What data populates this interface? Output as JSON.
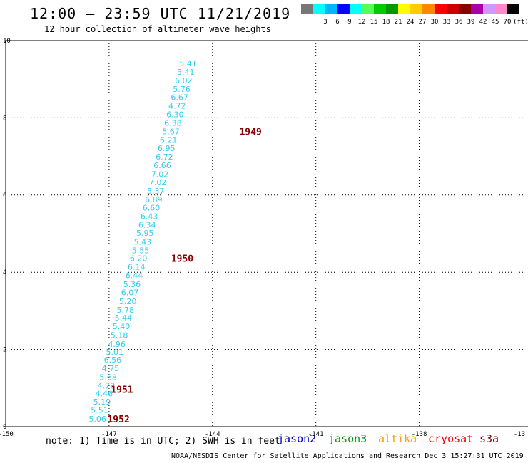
{
  "header": {
    "title": "12:00 — 23:59 UTC 11/21/2019",
    "subtitle": "12 hour collection of altimeter wave heights"
  },
  "color_scale": {
    "unit": "(ft)",
    "bins": [
      {
        "label": "",
        "color": "#777777"
      },
      {
        "label": "3",
        "color": "#00ffff"
      },
      {
        "label": "6",
        "color": "#00b4ff"
      },
      {
        "label": "9",
        "color": "#0000ff"
      },
      {
        "label": "12",
        "color": "#00ffff"
      },
      {
        "label": "15",
        "color": "#55ff55"
      },
      {
        "label": "18",
        "color": "#00cc00"
      },
      {
        "label": "21",
        "color": "#009900"
      },
      {
        "label": "24",
        "color": "#ffff00"
      },
      {
        "label": "27",
        "color": "#ffcc00"
      },
      {
        "label": "30",
        "color": "#ff8800"
      },
      {
        "label": "33",
        "color": "#ff0000"
      },
      {
        "label": "36",
        "color": "#cc0000"
      },
      {
        "label": "39",
        "color": "#880000"
      },
      {
        "label": "42",
        "color": "#aa00aa"
      },
      {
        "label": "45",
        "color": "#cc99ff"
      },
      {
        "label": "70",
        "color": "#ff88cc"
      },
      {
        "label": "",
        "color": "#000000"
      }
    ]
  },
  "axes": {
    "x_ticks": [
      "-150",
      "-147",
      "-144",
      "-141",
      "-138",
      "-13"
    ],
    "y_ticks": [
      "0",
      "2",
      "4",
      "6",
      "8",
      "10"
    ]
  },
  "observations": {
    "color": "#33ccee",
    "time_label_color": "#880000",
    "points": [
      {
        "lon": -147.59,
        "lat": 0.2,
        "swh": "5.06"
      },
      {
        "lon": -147.53,
        "lat": 0.43,
        "swh": "5.51"
      },
      {
        "lon": -147.46,
        "lat": 0.65,
        "swh": "5.19"
      },
      {
        "lon": -147.4,
        "lat": 0.86,
        "swh": "4.46"
      },
      {
        "lon": -147.34,
        "lat": 1.06,
        "swh": "4.78"
      },
      {
        "lon": -147.28,
        "lat": 1.28,
        "swh": "5.68"
      },
      {
        "lon": -147.21,
        "lat": 1.51,
        "swh": "4.75"
      },
      {
        "lon": -147.15,
        "lat": 1.73,
        "swh": "6.56"
      },
      {
        "lon": -147.09,
        "lat": 1.94,
        "swh": "5.01"
      },
      {
        "lon": -147.03,
        "lat": 2.14,
        "swh": "4.96"
      },
      {
        "lon": -146.96,
        "lat": 2.37,
        "swh": "5.18"
      },
      {
        "lon": -146.9,
        "lat": 2.6,
        "swh": "5.40"
      },
      {
        "lon": -146.84,
        "lat": 2.82,
        "swh": "5.44"
      },
      {
        "lon": -146.78,
        "lat": 3.03,
        "swh": "5.78"
      },
      {
        "lon": -146.71,
        "lat": 3.25,
        "swh": "5.20"
      },
      {
        "lon": -146.65,
        "lat": 3.48,
        "swh": "6.07"
      },
      {
        "lon": -146.59,
        "lat": 3.69,
        "swh": "5.36"
      },
      {
        "lon": -146.53,
        "lat": 3.92,
        "swh": "6.44"
      },
      {
        "lon": -146.46,
        "lat": 4.14,
        "swh": "6.14"
      },
      {
        "lon": -146.4,
        "lat": 4.36,
        "swh": "6.20"
      },
      {
        "lon": -146.34,
        "lat": 4.57,
        "swh": "5.55"
      },
      {
        "lon": -146.28,
        "lat": 4.79,
        "swh": "5.43"
      },
      {
        "lon": -146.21,
        "lat": 5.02,
        "swh": "5.95"
      },
      {
        "lon": -146.15,
        "lat": 5.23,
        "swh": "6.34"
      },
      {
        "lon": -146.09,
        "lat": 5.45,
        "swh": "6.43"
      },
      {
        "lon": -146.03,
        "lat": 5.67,
        "swh": "6.60"
      },
      {
        "lon": -145.96,
        "lat": 5.89,
        "swh": "6.89"
      },
      {
        "lon": -145.9,
        "lat": 6.11,
        "swh": "5.37"
      },
      {
        "lon": -145.84,
        "lat": 6.33,
        "swh": "7.02"
      },
      {
        "lon": -145.78,
        "lat": 6.54,
        "swh": "7.02"
      },
      {
        "lon": -145.71,
        "lat": 6.77,
        "swh": "6.66"
      },
      {
        "lon": -145.65,
        "lat": 6.99,
        "swh": "6.72"
      },
      {
        "lon": -145.59,
        "lat": 7.21,
        "swh": "6.95"
      },
      {
        "lon": -145.53,
        "lat": 7.43,
        "swh": "6.21"
      },
      {
        "lon": -145.46,
        "lat": 7.65,
        "swh": "5.67"
      },
      {
        "lon": -145.4,
        "lat": 7.87,
        "swh": "6.38"
      },
      {
        "lon": -145.34,
        "lat": 8.09,
        "swh": "6.30"
      },
      {
        "lon": -145.28,
        "lat": 8.31,
        "swh": "4.72"
      },
      {
        "lon": -145.21,
        "lat": 8.53,
        "swh": "6.67"
      },
      {
        "lon": -145.15,
        "lat": 8.75,
        "swh": "5.76"
      },
      {
        "lon": -145.09,
        "lat": 8.97,
        "swh": "6.02"
      },
      {
        "lon": -145.03,
        "lat": 9.19,
        "swh": "5.41"
      },
      {
        "lon": -144.96,
        "lat": 9.41,
        "swh": "5.41"
      }
    ],
    "time_labels": [
      {
        "lon": -147.05,
        "lat": 0.2,
        "text": "1952"
      },
      {
        "lon": -146.95,
        "lat": 0.97,
        "text": "1951"
      },
      {
        "lon": -145.2,
        "lat": 4.36,
        "text": "1950"
      },
      {
        "lon": -143.22,
        "lat": 7.65,
        "text": "1949"
      }
    ]
  },
  "footer": {
    "note": "note: 1) Time is in UTC; 2) SWH is in feet",
    "legend": [
      {
        "label": "jason2",
        "color": "#0000cc"
      },
      {
        "label": "jason3",
        "color": "#009900"
      },
      {
        "label": "altika",
        "color": "#ff9900"
      },
      {
        "label": "cryosat",
        "color": "#ee0000"
      },
      {
        "label": "s3a",
        "color": "#880000"
      }
    ],
    "credit": "NOAA/NESDIS Center for Satellite Applications and Research   Dec  3 15:27:31 UTC 2019"
  }
}
